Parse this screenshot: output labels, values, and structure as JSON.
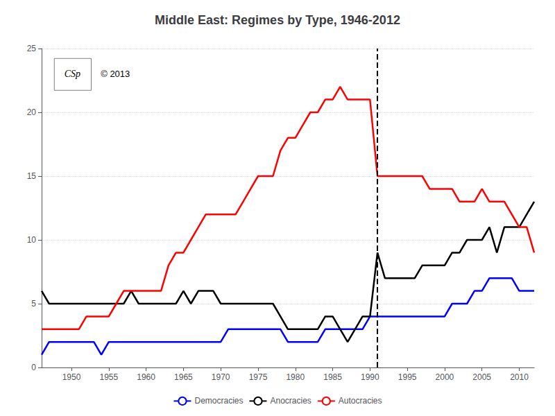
{
  "chart_data": {
    "type": "line",
    "title": "Middle East: Regimes by Type, 1946-2012",
    "x": [
      1946,
      1947,
      1948,
      1949,
      1950,
      1951,
      1952,
      1953,
      1954,
      1955,
      1956,
      1957,
      1958,
      1959,
      1960,
      1961,
      1962,
      1963,
      1964,
      1965,
      1966,
      1967,
      1968,
      1969,
      1970,
      1971,
      1972,
      1973,
      1974,
      1975,
      1976,
      1977,
      1978,
      1979,
      1980,
      1981,
      1982,
      1983,
      1984,
      1985,
      1986,
      1987,
      1988,
      1989,
      1990,
      1991,
      1992,
      1993,
      1994,
      1995,
      1996,
      1997,
      1998,
      1999,
      2000,
      2001,
      2002,
      2003,
      2004,
      2005,
      2006,
      2007,
      2008,
      2009,
      2010,
      2011,
      2012
    ],
    "series": [
      {
        "name": "Democracies",
        "color": "blue",
        "values": [
          1,
          2,
          2,
          2,
          2,
          2,
          2,
          2,
          1,
          2,
          2,
          2,
          2,
          2,
          2,
          2,
          2,
          2,
          2,
          2,
          2,
          2,
          2,
          2,
          2,
          3,
          3,
          3,
          3,
          3,
          3,
          3,
          3,
          2,
          2,
          2,
          2,
          2,
          3,
          3,
          3,
          3,
          3,
          3,
          4,
          4,
          4,
          4,
          4,
          4,
          4,
          4,
          4,
          4,
          4,
          5,
          5,
          5,
          6,
          6,
          7,
          7,
          7,
          7,
          6,
          6,
          6
        ]
      },
      {
        "name": "Anocracies",
        "color": "black",
        "values": [
          6,
          5,
          5,
          5,
          5,
          5,
          5,
          5,
          5,
          5,
          5,
          5,
          6,
          5,
          5,
          5,
          5,
          5,
          5,
          6,
          5,
          6,
          6,
          6,
          5,
          5,
          5,
          5,
          5,
          5,
          5,
          5,
          4,
          3,
          3,
          3,
          3,
          3,
          4,
          4,
          3,
          2,
          3,
          4,
          4,
          9,
          7,
          7,
          7,
          7,
          7,
          8,
          8,
          8,
          8,
          9,
          9,
          10,
          10,
          10,
          11,
          9,
          11,
          11,
          11,
          12,
          13
        ]
      },
      {
        "name": "Autocracies",
        "color": "red",
        "values": [
          3,
          3,
          3,
          3,
          3,
          3,
          4,
          4,
          4,
          4,
          5,
          6,
          6,
          6,
          6,
          6,
          6,
          8,
          9,
          9,
          10,
          11,
          12,
          12,
          12,
          12,
          12,
          13,
          14,
          15,
          15,
          15,
          17,
          18,
          18,
          19,
          20,
          20,
          21,
          21,
          22,
          21,
          21,
          21,
          21,
          15,
          15,
          15,
          15,
          15,
          15,
          15,
          14,
          14,
          14,
          14,
          13,
          13,
          13,
          14,
          13,
          13,
          13,
          12,
          11,
          11,
          9
        ]
      }
    ],
    "xlim": [
      1946,
      2012
    ],
    "xticks": [
      1950,
      1955,
      1960,
      1965,
      1970,
      1975,
      1980,
      1985,
      1990,
      1995,
      2000,
      2005,
      2010
    ],
    "ylim": [
      0,
      25
    ],
    "yticks": [
      0,
      5,
      10,
      15,
      20,
      25
    ],
    "grid": true,
    "legend": "bottom",
    "vlines": [
      1991
    ],
    "annotations": [
      "CSp",
      "© 2013"
    ]
  }
}
